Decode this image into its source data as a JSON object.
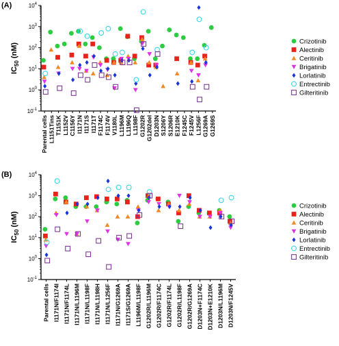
{
  "chart_data": [
    {
      "type": "scatter",
      "panel_label": "(A)",
      "ylabel": "IC50 (nM)",
      "ylabel_main": "IC",
      "ylabel_sub": "50",
      "ylabel_unit": " (nM)",
      "y_scale": "log",
      "ylim": [
        0.1,
        10000
      ],
      "y_ticks": [
        0.1,
        1,
        10,
        100,
        1000,
        10000
      ],
      "y_tick_labels": [
        {
          "base": "10",
          "exp": "-1"
        },
        {
          "base": "10",
          "exp": "0"
        },
        {
          "base": "10",
          "exp": "1"
        },
        {
          "base": "10",
          "exp": "2"
        },
        {
          "base": "10",
          "exp": "3"
        },
        {
          "base": "10",
          "exp": "4"
        }
      ],
      "legend_position": "right",
      "categories": [
        "Parental cells",
        "L1151Tins",
        "T1151K",
        "L1152V",
        "C1156Y",
        "I1171N",
        "I1171S",
        "I1171T",
        "F1174C",
        "F1174V",
        "V1180L",
        "L1196M",
        "L1196Q",
        "L1198F",
        "G1202R",
        "G1202del",
        "D1203N",
        "S1206Y",
        "S1206R",
        "E1210K",
        "F1245C",
        "F1245V",
        "L1256F",
        "G1269A",
        "G1269S"
      ],
      "series": [
        {
          "name": "Crizotinib",
          "color": "#2ecc40",
          "marker": "circle",
          "values": [
            25,
            550,
            120,
            150,
            480,
            600,
            150,
            300,
            100,
            30,
            30,
            800,
            330,
            30,
            200,
            600,
            30,
            120,
            700,
            400,
            300,
            30,
            30,
            130,
            900
          ]
        },
        {
          "name": "Alectinib",
          "color": "#e8231c",
          "marker": "square",
          "values": [
            12,
            null,
            35,
            null,
            45,
            150,
            40,
            150,
            null,
            25,
            20,
            25,
            350,
            40,
            300,
            15,
            15,
            null,
            null,
            30,
            null,
            20,
            15,
            40,
            null
          ]
        },
        {
          "name": "Ceritinib",
          "color": "#f08a24",
          "marker": "triangle",
          "values": [
            4,
            80,
            12,
            null,
            20,
            120,
            8,
            6,
            20,
            5,
            20,
            20,
            40,
            20,
            250,
            20,
            12,
            1.5,
            null,
            6,
            null,
            20,
            2.8,
            30,
            null
          ]
        },
        {
          "name": "Brigatinib",
          "color": "#e032e6",
          "marker": "triangle-down",
          "values": [
            2.5,
            null,
            6,
            null,
            10,
            10,
            8,
            35,
            15,
            9,
            1.2,
            30,
            30,
            1,
            160,
            50,
            15,
            null,
            null,
            null,
            null,
            8,
            5,
            15,
            null
          ]
        },
        {
          "name": "Lorlatinib",
          "color": "#1a36d6",
          "marker": "diamond",
          "values": [
            1.5,
            null,
            6,
            null,
            3,
            15,
            20,
            40,
            8,
            10,
            5,
            25,
            25,
            2,
            90,
            5,
            12,
            null,
            null,
            2,
            null,
            2.5,
            8000,
            20,
            null
          ]
        },
        {
          "name": "Entrectinib",
          "color": "#38d6e8",
          "marker": "circle-open",
          "values": [
            6,
            null,
            null,
            null,
            null,
            600,
            350,
            null,
            500,
            800,
            50,
            60,
            null,
            3,
            5000,
            null,
            80,
            null,
            null,
            null,
            null,
            60,
            2200,
            100,
            null
          ]
        },
        {
          "name": "Gilteritinib",
          "color": "#7e3a95",
          "marker": "square-open",
          "values": [
            0.8,
            null,
            1.2,
            null,
            0.7,
            5,
            3,
            15,
            5,
            4,
            1.4,
            20,
            20,
            0.11,
            150,
            null,
            50,
            null,
            null,
            null,
            null,
            1.4,
            0.35,
            1.4,
            null
          ]
        }
      ]
    },
    {
      "type": "scatter",
      "panel_label": "(B)",
      "ylabel": "IC50 (nM)",
      "ylabel_main": "IC",
      "ylabel_sub": "50",
      "ylabel_unit": " (nM)",
      "y_scale": "log",
      "ylim": [
        0.1,
        10000
      ],
      "y_ticks": [
        0.1,
        1,
        10,
        100,
        1000,
        10000
      ],
      "y_tick_labels": [
        {
          "base": "10",
          "exp": "-1"
        },
        {
          "base": "10",
          "exp": "0"
        },
        {
          "base": "10",
          "exp": "1"
        },
        {
          "base": "10",
          "exp": "2"
        },
        {
          "base": "10",
          "exp": "3"
        },
        {
          "base": "10",
          "exp": "4"
        }
      ],
      "legend_position": "right",
      "categories": [
        "Parental cells",
        "I1171N/F1174I",
        "I1171N/F1174L",
        "I1171N/L1196M",
        "I1171N/L1198F",
        "I1171N/L1198H",
        "I1171N/L1256F",
        "I1171N/G1269A",
        "I1171S/G1269A",
        "L1196M/L1198F",
        "G1202R/L1196M",
        "G1202R/F1174C",
        "G1202R/F1174L",
        "G1202R/L1198F",
        "G1202R/G1269A",
        "D1203N+F1174C",
        "D1203N+E1210K",
        "D1203N/L1196M",
        "D1203N/F1245V"
      ],
      "series": [
        {
          "name": "Crizotinib",
          "color": "#2ecc40",
          "marker": "circle",
          "values": [
            25,
            700,
            800,
            300,
            300,
            300,
            500,
            400,
            600,
            50,
            600,
            700,
            500,
            60,
            300,
            150,
            150,
            200,
            100
          ]
        },
        {
          "name": "Alectinib",
          "color": "#e8231c",
          "marker": "square",
          "values": [
            12,
            1200,
            500,
            400,
            800,
            900,
            700,
            700,
            500,
            100,
            1000,
            700,
            400,
            150,
            1000,
            200,
            150,
            150,
            60
          ]
        },
        {
          "name": "Ceritinib",
          "color": "#f08a24",
          "marker": "triangle",
          "values": [
            8,
            150,
            500,
            15,
            300,
            200,
            40,
            100,
            100,
            300,
            1000,
            200,
            400,
            200,
            400,
            100,
            100,
            200,
            50
          ]
        },
        {
          "name": "Brigatinib",
          "color": "#e032e6",
          "marker": "triangle-down",
          "values": [
            4,
            120,
            15,
            15,
            60,
            200,
            20,
            8,
            5,
            200,
            500,
            400,
            300,
            1000,
            500,
            100,
            100,
            150,
            30
          ]
        },
        {
          "name": "Lorlatinib",
          "color": "#1a36d6",
          "marker": "diamond",
          "values": [
            1.5,
            null,
            150,
            400,
            400,
            800,
            5000,
            1000,
            1000,
            200,
            800,
            300,
            300,
            300,
            800,
            200,
            30,
            100,
            40
          ]
        },
        {
          "name": "Entrectinib",
          "color": "#38d6e8",
          "marker": "circle-open",
          "values": [
            6,
            5000,
            null,
            null,
            null,
            null,
            2000,
            2500,
            2500,
            null,
            1500,
            null,
            null,
            null,
            null,
            null,
            null,
            600,
            800
          ]
        },
        {
          "name": "Gilteritinib",
          "color": "#7e3a95",
          "marker": "square-open",
          "values": [
            0.8,
            25,
            3,
            15,
            1.6,
            7,
            0.4,
            10,
            12,
            120,
            1000,
            null,
            null,
            35,
            null,
            null,
            null,
            100,
            60
          ]
        }
      ]
    }
  ]
}
